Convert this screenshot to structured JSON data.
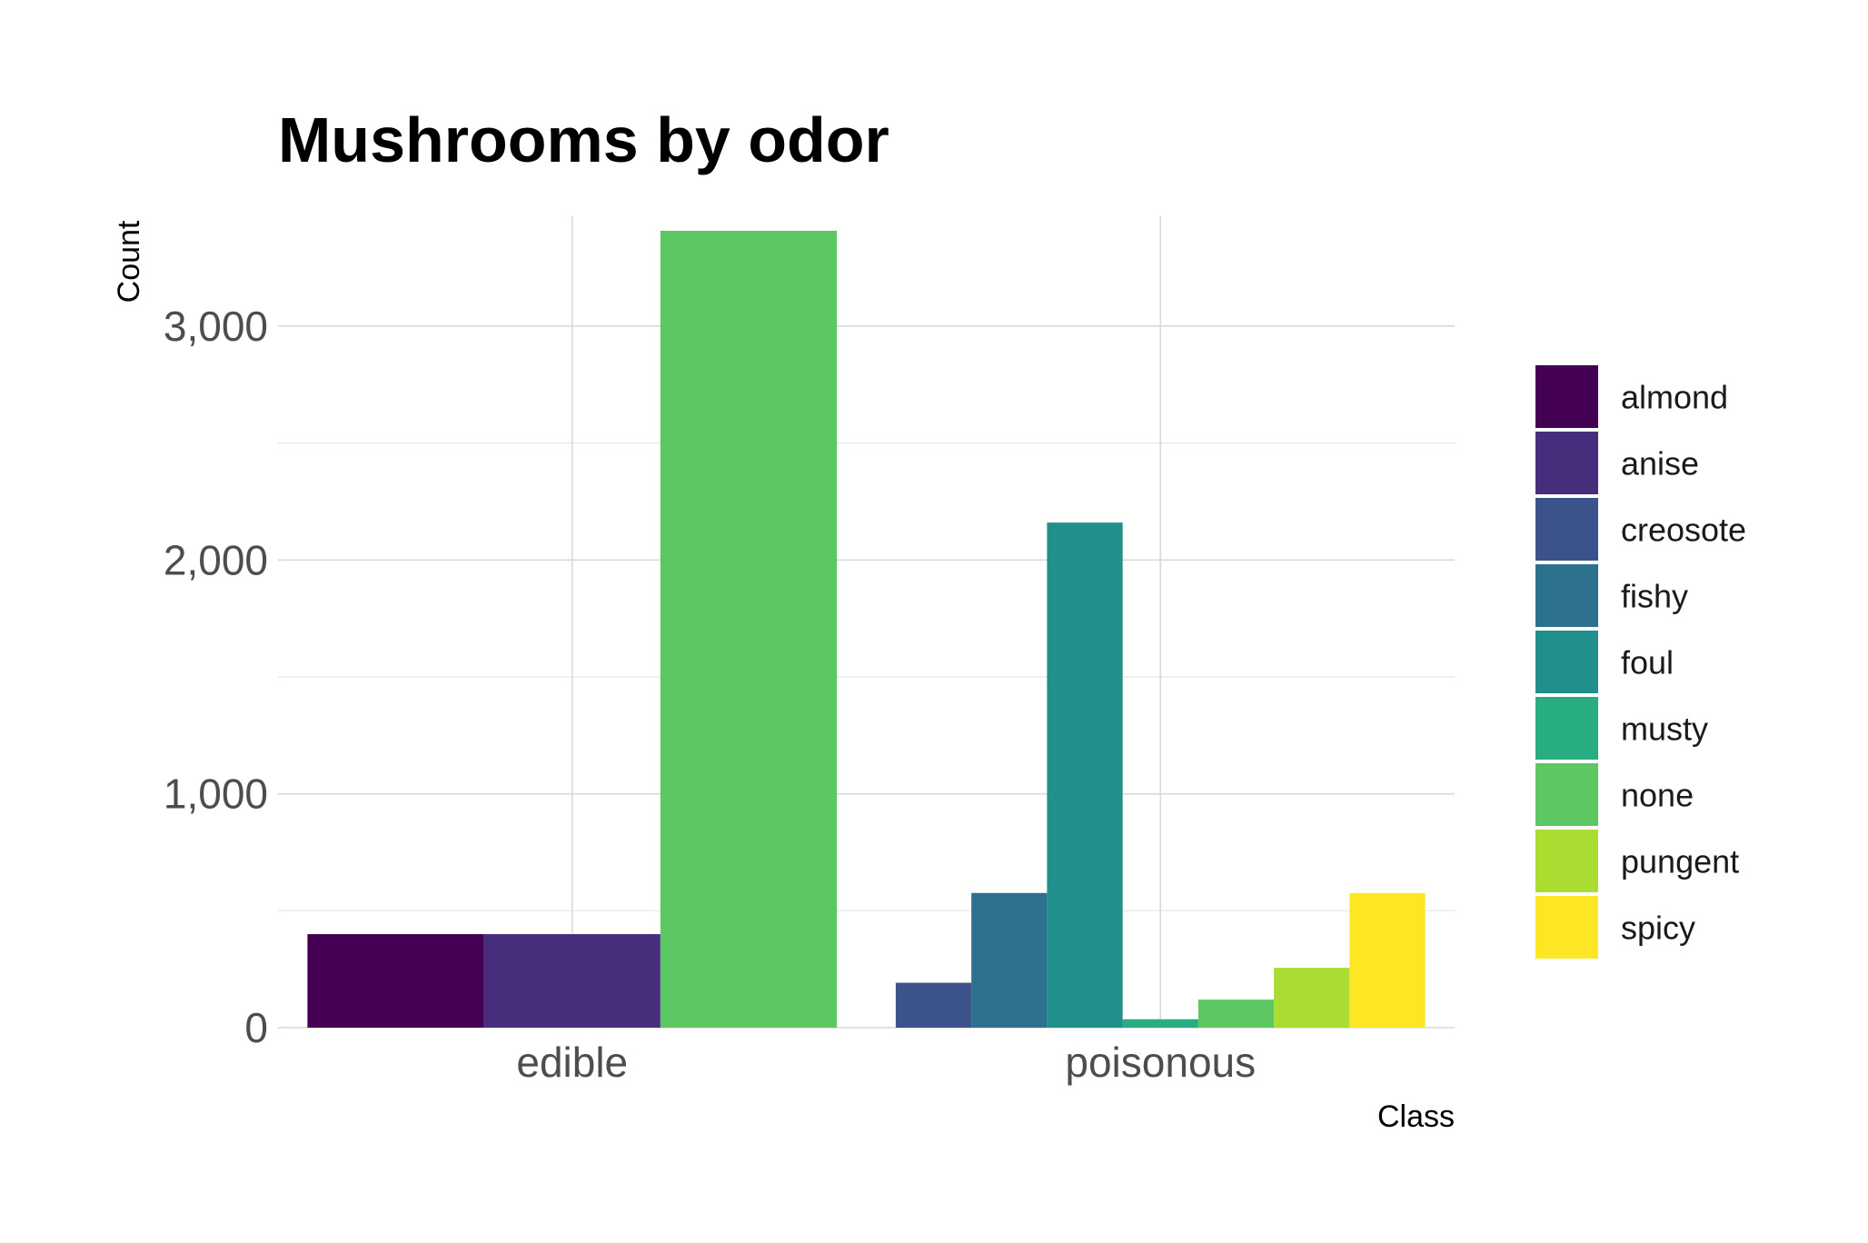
{
  "chart_data": {
    "type": "bar",
    "title": "Mushrooms by odor",
    "xlabel": "Class",
    "ylabel": "Count",
    "categories": [
      "edible",
      "poisonous"
    ],
    "ylim": [
      0,
      3470
    ],
    "yticks": [
      0,
      1000,
      2000,
      3000
    ],
    "ytick_labels": [
      "0",
      "1,000",
      "2,000",
      "3,000"
    ],
    "grid": true,
    "legend_position": "right",
    "series": [
      {
        "name": "almond",
        "color": "#440154",
        "values": [
          400,
          null
        ]
      },
      {
        "name": "anise",
        "color": "#472D7B",
        "values": [
          400,
          null
        ]
      },
      {
        "name": "creosote",
        "color": "#3B528B",
        "values": [
          null,
          192
        ]
      },
      {
        "name": "fishy",
        "color": "#2C728E",
        "values": [
          null,
          576
        ]
      },
      {
        "name": "foul",
        "color": "#21908C",
        "values": [
          null,
          2160
        ]
      },
      {
        "name": "musty",
        "color": "#27AD81",
        "values": [
          null,
          36
        ]
      },
      {
        "name": "none",
        "color": "#5DC863",
        "values": [
          3408,
          120
        ]
      },
      {
        "name": "pungent",
        "color": "#AADC32",
        "values": [
          null,
          256
        ]
      },
      {
        "name": "spicy",
        "color": "#FDE725",
        "values": [
          null,
          576
        ]
      }
    ]
  }
}
